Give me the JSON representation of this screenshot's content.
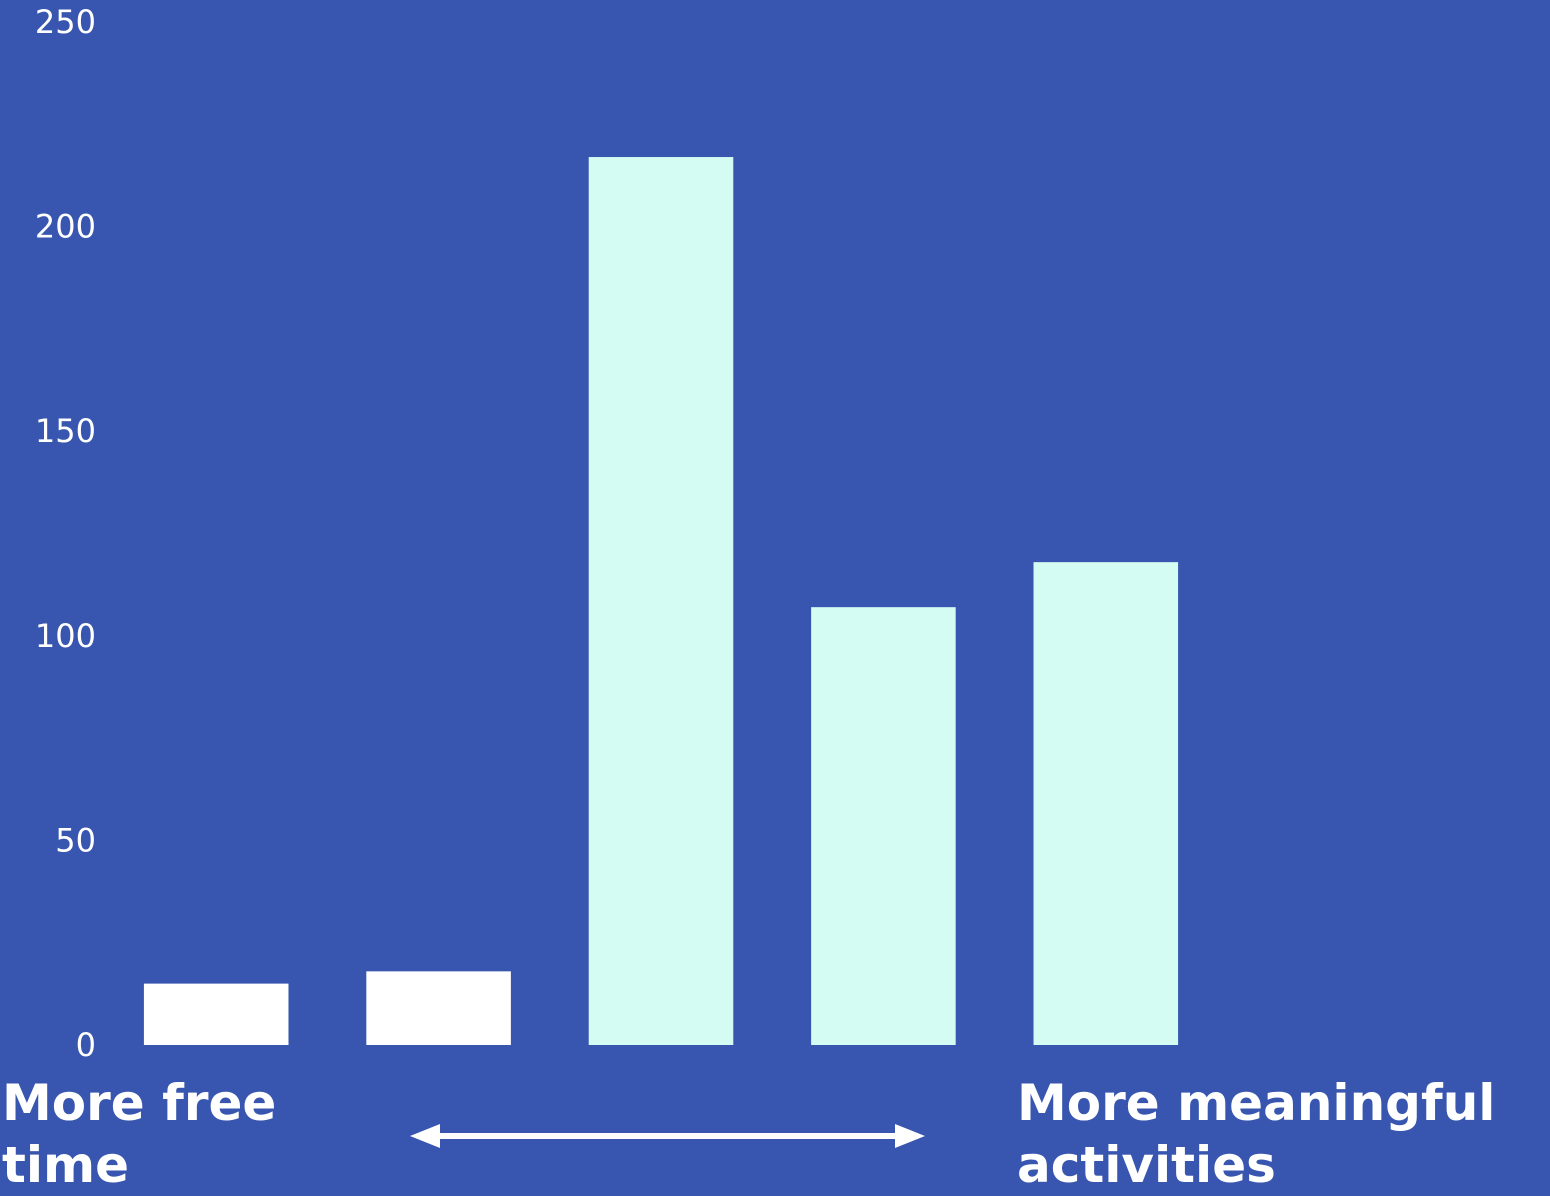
{
  "chart_data": {
    "type": "bar",
    "categories": [
      "",
      "",
      "",
      "",
      ""
    ],
    "values": [
      15,
      18,
      217,
      107,
      118
    ],
    "bar_colors": [
      "#FFFFFF",
      "#FFFFFF",
      "#D4FCF2",
      "#D4FCF2",
      "#D4FCF2"
    ],
    "ylim": [
      0,
      250
    ],
    "yticks": [
      0,
      50,
      100,
      150,
      200,
      250
    ],
    "grid": false,
    "legend": "none",
    "title": "",
    "xlabel": "",
    "ylabel": ""
  },
  "labels": {
    "left": "More free time",
    "right": "More meaningful activities"
  },
  "colors": {
    "background": "#3856AF",
    "text": "#FFFFFF",
    "arrow": "#FFFFFF"
  }
}
